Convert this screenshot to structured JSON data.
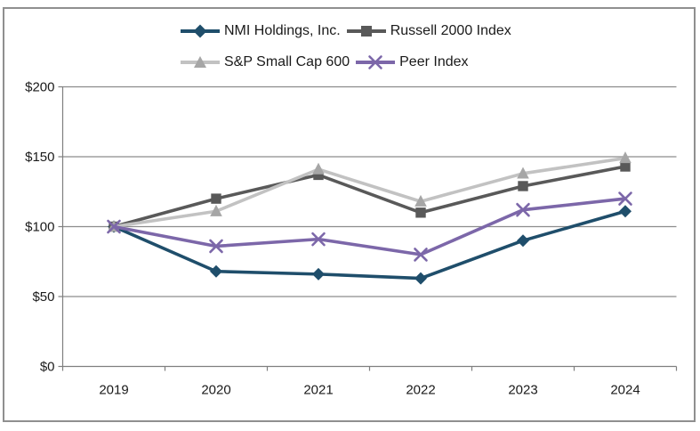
{
  "figure": {
    "background": "#FFFFFF",
    "border_color": "#8F8F8F"
  },
  "chart_data": {
    "type": "line",
    "title": "",
    "categories": [
      "2019",
      "2020",
      "2021",
      "2022",
      "2023",
      "2024"
    ],
    "series": [
      {
        "name": "NMI Holdings, Inc.",
        "values": [
          100,
          68,
          66,
          63,
          90,
          111
        ],
        "color": "#1F4E6B",
        "marker": "diamond"
      },
      {
        "name": "Russell 2000 Index",
        "values": [
          100,
          120,
          137,
          110,
          129,
          143
        ],
        "color": "#595959",
        "marker": "square"
      },
      {
        "name": "S&P Small Cap 600",
        "values": [
          100,
          111,
          141,
          118,
          138,
          149
        ],
        "color": "#C2C2C2",
        "marker_color": "#A6A6A6",
        "marker": "triangle"
      },
      {
        "name": "Peer Index",
        "values": [
          100,
          86,
          91,
          80,
          112,
          120
        ],
        "color": "#7C67A9",
        "marker": "x"
      }
    ],
    "y_axis": {
      "ylim": [
        0,
        200
      ],
      "ticks": [
        0,
        50,
        100,
        150,
        200
      ],
      "tick_labels": [
        "$0",
        "$50",
        "$100",
        "$150",
        "$200"
      ]
    },
    "x_axis": {
      "tick_labels": [
        "2019",
        "2020",
        "2021",
        "2022",
        "2023",
        "2024"
      ]
    },
    "grid": true,
    "legend_position": "top",
    "gridline_color": "#8C8C8C",
    "axis_color": "#7F7F7F"
  }
}
